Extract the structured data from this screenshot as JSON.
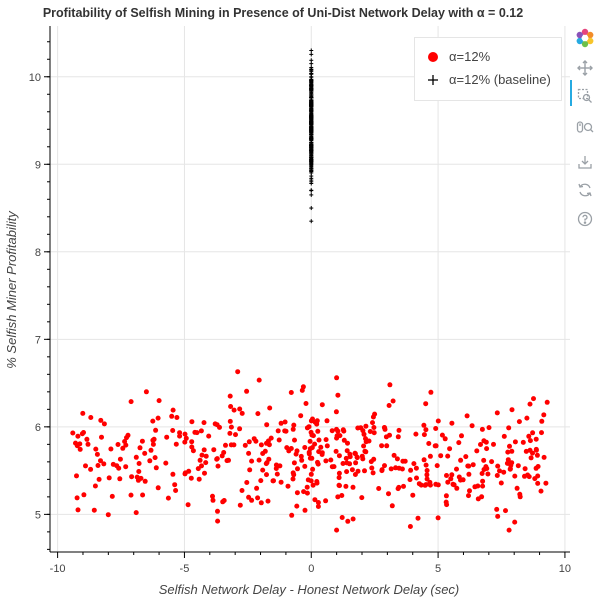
{
  "chart_data": {
    "type": "scatter",
    "title": "Profitability of Selfish Mining in Presence of Uni-Dist Network Delay with α = 0.12",
    "xlabel": "Selfish Network Delay - Honest Network Delay (sec)",
    "ylabel": "% Selfish Miner Profitability",
    "xlim": [
      -10.3,
      10.2
    ],
    "ylim": [
      4.57,
      10.58
    ],
    "x_ticks": [
      -10,
      -5,
      0,
      5,
      10
    ],
    "y_ticks": [
      5,
      6,
      7,
      8,
      9,
      10
    ],
    "grid": true,
    "legend_position": "top-right",
    "series": [
      {
        "name": "α=12%",
        "marker": "circle",
        "color": "#ff0000",
        "x_range": [
          -9.4,
          9.3
        ],
        "y_range": [
          4.8,
          6.63
        ],
        "n_points": 500,
        "sample_points": [
          [
            -9.4,
            5.93
          ],
          [
            -8.8,
            5.8
          ],
          [
            -6.9,
            5.02
          ],
          [
            -6.5,
            6.4
          ],
          [
            -2.9,
            6.63
          ],
          [
            1.0,
            6.56
          ],
          [
            1.0,
            4.82
          ],
          [
            3.1,
            6.48
          ],
          [
            5.0,
            4.96
          ],
          [
            7.8,
            4.82
          ],
          [
            8.5,
            6.1
          ],
          [
            9.3,
            6.28
          ]
        ],
        "marker_size": 4
      },
      {
        "name": "α=12% (baseline)",
        "marker": "cross",
        "color": "#000000",
        "x": 0,
        "y_range": [
          8.35,
          10.3
        ],
        "n_points": 300,
        "marker_size": 4
      }
    ]
  },
  "toolbar": {
    "icons": [
      "bokeh-logo-icon",
      "pan-icon",
      "box-zoom-icon",
      "wheel-zoom-icon",
      "save-icon",
      "reset-icon",
      "help-icon"
    ]
  }
}
